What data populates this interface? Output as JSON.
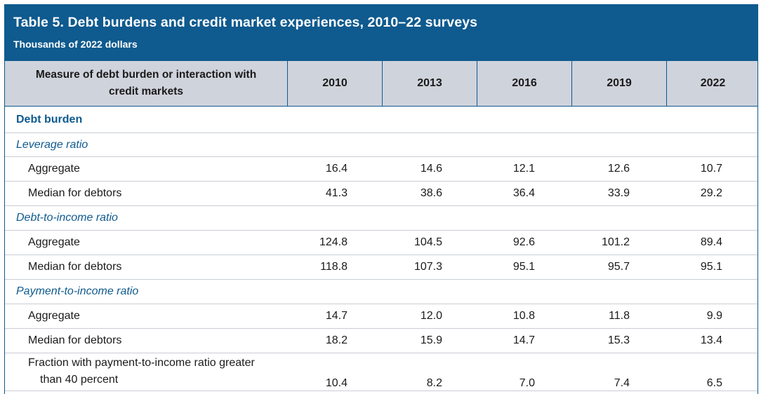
{
  "table": {
    "title": "Table 5. Debt burdens and credit market experiences, 2010–22 surveys",
    "subtitle": "Thousands of 2022 dollars",
    "header": {
      "measure": "Measure of debt burden or interaction with credit markets",
      "years": [
        "2010",
        "2013",
        "2016",
        "2019",
        "2022"
      ]
    },
    "rows": [
      {
        "kind": "section",
        "label": "Debt burden"
      },
      {
        "kind": "group",
        "label": "Leverage ratio"
      },
      {
        "kind": "item",
        "label": "Aggregate",
        "values": [
          "16.4",
          "14.6",
          "12.1",
          "12.6",
          "10.7"
        ]
      },
      {
        "kind": "item",
        "label": "Median for debtors",
        "values": [
          "41.3",
          "38.6",
          "36.4",
          "33.9",
          "29.2"
        ]
      },
      {
        "kind": "group",
        "label": "Debt-to-income ratio"
      },
      {
        "kind": "item",
        "label": "Aggregate",
        "values": [
          "124.8",
          "104.5",
          "92.6",
          "101.2",
          "89.4"
        ]
      },
      {
        "kind": "item",
        "label": "Median for debtors",
        "values": [
          "118.8",
          "107.3",
          "95.1",
          "95.7",
          "95.1"
        ]
      },
      {
        "kind": "group",
        "label": "Payment-to-income ratio"
      },
      {
        "kind": "item",
        "label": "Aggregate",
        "values": [
          "14.7",
          "12.0",
          "10.8",
          "11.8",
          "9.9"
        ]
      },
      {
        "kind": "item",
        "label": "Median for debtors",
        "values": [
          "18.2",
          "15.9",
          "14.7",
          "15.3",
          "13.4"
        ]
      },
      {
        "kind": "item",
        "label": "Fraction with payment-to-income ratio greater than 40 percent",
        "values": [
          "10.4",
          "8.2",
          "7.0",
          "7.4",
          "6.5"
        ]
      }
    ]
  },
  "colors": {
    "accent": "#0f5a8e",
    "header_bg": "#cfd3dc",
    "rule": "#c9cdd4"
  }
}
